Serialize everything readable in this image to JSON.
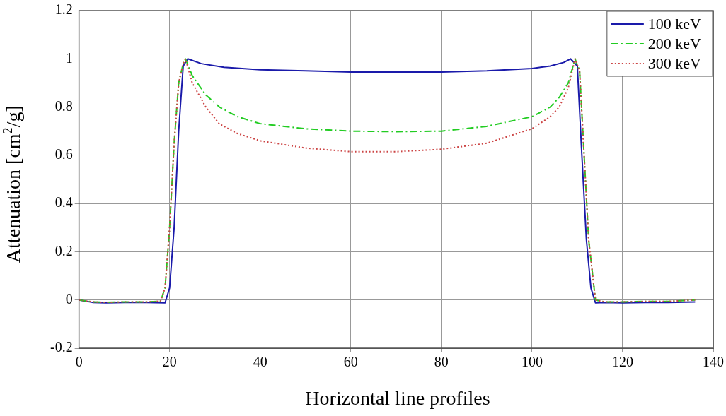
{
  "chart_data": {
    "type": "line",
    "xlabel": "Horizontal line profiles",
    "ylabel": "Attenuation [cm$^{2}$/g]",
    "xlim": [
      0,
      140
    ],
    "xticks": [
      0,
      20,
      40,
      60,
      80,
      100,
      120,
      140
    ],
    "ylim": [
      -0.2,
      1.2
    ],
    "yticks": [
      -0.2,
      0,
      0.2,
      0.4,
      0.6,
      0.8,
      1,
      1.2
    ],
    "grid": true,
    "legend": "top right",
    "marker": "none",
    "series": [
      {
        "name": "100 keV",
        "color": "#1a1aaa",
        "line_style": "solid",
        "x": [
          0,
          3,
          6,
          10,
          15,
          19,
          20,
          21,
          22,
          23,
          24,
          27,
          32,
          40,
          50,
          60,
          70,
          80,
          90,
          100,
          104,
          107,
          108.5,
          110,
          111,
          112,
          113,
          114,
          116,
          120,
          125,
          130,
          136
        ],
        "values": [
          0,
          -0.01,
          -0.012,
          -0.01,
          -0.01,
          -0.012,
          0.05,
          0.3,
          0.7,
          0.97,
          1,
          0.98,
          0.965,
          0.955,
          0.95,
          0.945,
          0.945,
          0.945,
          0.95,
          0.96,
          0.97,
          0.985,
          1,
          0.97,
          0.6,
          0.25,
          0.05,
          -0.012,
          -0.01,
          -0.012,
          -0.01,
          -0.01,
          -0.008
        ]
      },
      {
        "name": "200 keV",
        "color": "#22cc22",
        "line_style": "dashdot",
        "x": [
          0,
          3,
          6,
          10,
          15,
          18,
          19,
          20,
          21,
          22,
          23,
          23.5,
          25,
          28,
          31,
          35,
          40,
          50,
          60,
          70,
          80,
          90,
          100,
          104,
          106,
          108,
          109.5,
          110.5,
          111.5,
          112.5,
          114,
          116,
          120,
          125,
          130,
          136
        ],
        "values": [
          0,
          -0.008,
          -0.01,
          -0.008,
          -0.008,
          -0.005,
          0.05,
          0.3,
          0.65,
          0.9,
          0.98,
          1,
          0.93,
          0.85,
          0.8,
          0.76,
          0.731,
          0.71,
          0.7,
          0.698,
          0.7,
          0.72,
          0.76,
          0.8,
          0.84,
          0.9,
          1,
          0.95,
          0.6,
          0.25,
          0,
          -0.008,
          -0.008,
          -0.006,
          -0.006,
          0
        ]
      },
      {
        "name": "300 keV",
        "color": "#cc4444",
        "line_style": "dotted",
        "x": [
          0,
          3,
          6,
          10,
          15,
          18,
          19,
          20,
          21,
          22,
          23,
          23.5,
          25,
          28,
          31,
          35,
          40,
          50,
          60,
          70,
          80,
          90,
          100,
          104,
          106,
          108,
          109.5,
          110.5,
          111.5,
          112.5,
          114,
          116,
          120,
          125,
          130,
          136
        ],
        "values": [
          0,
          -0.008,
          -0.01,
          -0.008,
          -0.008,
          -0.005,
          0.05,
          0.3,
          0.65,
          0.9,
          0.98,
          1,
          0.9,
          0.8,
          0.73,
          0.69,
          0.66,
          0.63,
          0.615,
          0.615,
          0.625,
          0.65,
          0.71,
          0.76,
          0.8,
          0.88,
          1,
          0.95,
          0.6,
          0.25,
          0,
          -0.008,
          -0.008,
          -0.006,
          -0.006,
          0
        ]
      }
    ]
  }
}
